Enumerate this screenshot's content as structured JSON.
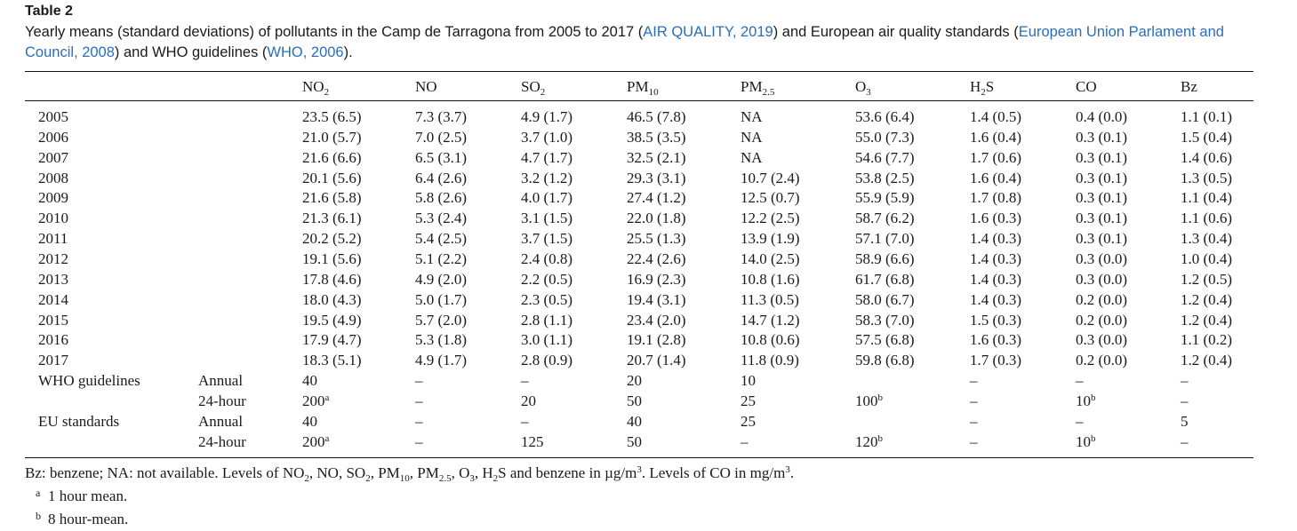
{
  "caption": {
    "label": "Table 2",
    "text_part1": "Yearly means (standard deviations) of pollutants in the Camp de Tarragona from 2005 to 2017 (",
    "ref1": "AIR QUALITY, 2019",
    "text_part2": ") and European air quality standards (",
    "ref2": "European Union Parlament and Council, 2008",
    "text_part3": ") and WHO guidelines (",
    "ref3": "WHO, 2006",
    "text_part4": ")."
  },
  "colors": {
    "link": "#2a6ebb",
    "text": "#1a1a1a",
    "rule": "#111111"
  },
  "columns": [
    {
      "main": "NO",
      "sub": "2"
    },
    {
      "main": "NO",
      "sub": ""
    },
    {
      "main": "SO",
      "sub": "2"
    },
    {
      "main": "PM",
      "sub": "10"
    },
    {
      "main": "PM",
      "sub": "2.5"
    },
    {
      "main": "O",
      "sub": "3"
    },
    {
      "main": "H",
      "sub": "2",
      "after": "S"
    },
    {
      "main": "CO",
      "sub": ""
    },
    {
      "main": "Bz",
      "sub": ""
    }
  ],
  "rows": [
    {
      "label": "2005",
      "period": "",
      "values": [
        "23.5 (6.5)",
        "7.3 (3.7)",
        "4.9 (1.7)",
        "46.5 (7.8)",
        "NA",
        "53.6 (6.4)",
        "1.4 (0.5)",
        "0.4 (0.0)",
        "1.1 (0.1)"
      ]
    },
    {
      "label": "2006",
      "period": "",
      "values": [
        "21.0 (5.7)",
        "7.0 (2.5)",
        "3.7 (1.0)",
        "38.5 (3.5)",
        "NA",
        "55.0 (7.3)",
        "1.6 (0.4)",
        "0.3 (0.1)",
        "1.5 (0.4)"
      ]
    },
    {
      "label": "2007",
      "period": "",
      "values": [
        "21.6 (6.6)",
        "6.5 (3.1)",
        "4.7 (1.7)",
        "32.5 (2.1)",
        "NA",
        "54.6 (7.7)",
        "1.7 (0.6)",
        "0.3 (0.1)",
        "1.4 (0.6)"
      ]
    },
    {
      "label": "2008",
      "period": "",
      "values": [
        "20.1 (5.6)",
        "6.4 (2.6)",
        "3.2 (1.2)",
        "29.3 (3.1)",
        "10.7 (2.4)",
        "53.8 (2.5)",
        "1.6 (0.4)",
        "0.3 (0.1)",
        "1.3 (0.5)"
      ]
    },
    {
      "label": "2009",
      "period": "",
      "values": [
        "21.6 (5.8)",
        "5.8 (2.6)",
        "4.0 (1.7)",
        "27.4 (1.2)",
        "12.5 (0.7)",
        "55.9 (5.9)",
        "1.7 (0.8)",
        "0.3 (0.1)",
        "1.1 (0.4)"
      ]
    },
    {
      "label": "2010",
      "period": "",
      "values": [
        "21.3 (6.1)",
        "5.3 (2.4)",
        "3.1 (1.5)",
        "22.0 (1.8)",
        "12.2 (2.5)",
        "58.7 (6.2)",
        "1.6 (0.3)",
        "0.3 (0.1)",
        "1.1 (0.6)"
      ]
    },
    {
      "label": "2011",
      "period": "",
      "values": [
        "20.2 (5.2)",
        "5.4 (2.5)",
        "3.7 (1.5)",
        "25.5 (1.3)",
        "13.9 (1.9)",
        "57.1 (7.0)",
        "1.4 (0.3)",
        "0.3 (0.1)",
        "1.3 (0.4)"
      ]
    },
    {
      "label": "2012",
      "period": "",
      "values": [
        "19.1 (5.6)",
        "5.1 (2.2)",
        "2.4 (0.8)",
        "22.4 (2.6)",
        "14.0 (2.5)",
        "58.9 (6.6)",
        "1.4 (0.3)",
        "0.3 (0.0)",
        "1.0 (0.4)"
      ]
    },
    {
      "label": "2013",
      "period": "",
      "values": [
        "17.8 (4.6)",
        "4.9 (2.0)",
        "2.2 (0.5)",
        "16.9 (2.3)",
        "10.8 (1.6)",
        "61.7 (6.8)",
        "1.4 (0.3)",
        "0.3 (0.0)",
        "1.2 (0.5)"
      ]
    },
    {
      "label": "2014",
      "period": "",
      "values": [
        "18.0 (4.3)",
        "5.0 (1.7)",
        "2.3 (0.5)",
        "19.4 (3.1)",
        "11.3 (0.5)",
        "58.0 (6.7)",
        "1.4 (0.3)",
        "0.2 (0.0)",
        "1.2 (0.4)"
      ]
    },
    {
      "label": "2015",
      "period": "",
      "values": [
        "19.5 (4.9)",
        "5.7 (2.0)",
        "2.8 (1.1)",
        "23.4 (2.0)",
        "14.7 (1.2)",
        "58.3 (7.0)",
        "1.5 (0.3)",
        "0.2 (0.0)",
        "1.2 (0.4)"
      ]
    },
    {
      "label": "2016",
      "period": "",
      "values": [
        "17.9 (4.7)",
        "5.3 (1.8)",
        "3.0 (1.1)",
        "19.1 (2.8)",
        "10.8 (0.6)",
        "57.5 (6.8)",
        "1.6 (0.3)",
        "0.3 (0.0)",
        "1.1 (0.2)"
      ]
    },
    {
      "label": "2017",
      "period": "",
      "values": [
        "18.3 (5.1)",
        "4.9 (1.7)",
        "2.8 (0.9)",
        "20.7 (1.4)",
        "11.8 (0.9)",
        "59.8 (6.8)",
        "1.7 (0.3)",
        "0.2 (0.0)",
        "1.2 (0.4)"
      ]
    },
    {
      "label": "WHO guidelines",
      "period": "Annual",
      "values": [
        "40",
        "–",
        "–",
        "20",
        "10",
        "",
        "–",
        "–",
        "–"
      ]
    },
    {
      "label": "",
      "period": "24-hour",
      "values": [
        "200|a",
        "–",
        "20",
        "50",
        "25",
        "100|b",
        "–",
        "10|b",
        "–"
      ]
    },
    {
      "label": "EU standards",
      "period": "Annual",
      "values": [
        "40",
        "–",
        "–",
        "40",
        "25",
        "",
        "–",
        "–",
        "5"
      ]
    },
    {
      "label": "",
      "period": "24-hour",
      "values": [
        "200|a",
        "–",
        "125",
        "50",
        "–",
        "120|b",
        "–",
        "10|b",
        "–"
      ]
    }
  ],
  "footnotes": {
    "abbrev_parts": [
      "Bz: benzene; NA: not available. Levels of NO",
      "2",
      ", NO, SO",
      "2",
      ", PM",
      "10",
      ", PM",
      "2.5",
      ", O",
      "3",
      ", H",
      "2",
      "S and benzene in µg/m",
      "3",
      ". Levels of CO in mg/m",
      "3",
      "."
    ],
    "notes": [
      {
        "mark": "a",
        "text": "1 hour mean."
      },
      {
        "mark": "b",
        "text": "8 hour-mean."
      }
    ]
  }
}
